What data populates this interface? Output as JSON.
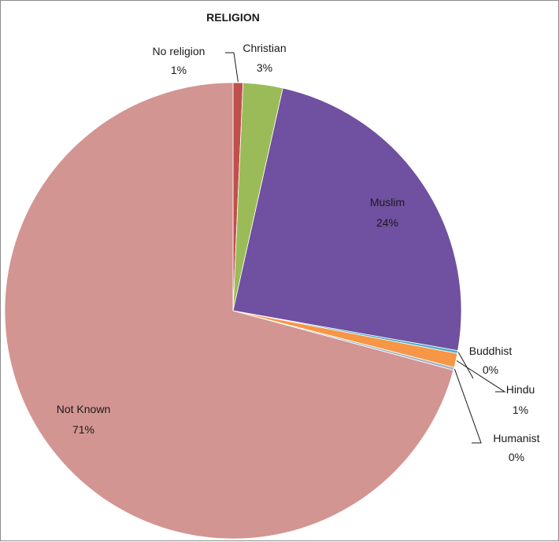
{
  "chart_data": {
    "type": "pie",
    "title": "RELIGION",
    "slices": [
      {
        "label": "No religion",
        "pct_label": "1%",
        "value": 0.7,
        "color": "#c0504d"
      },
      {
        "label": "Christian",
        "pct_label": "3%",
        "value": 2.8,
        "color": "#9bbb59"
      },
      {
        "label": "Muslim",
        "pct_label": "24%",
        "value": 24.3,
        "color": "#7050a0"
      },
      {
        "label": "Buddhist",
        "pct_label": "0%",
        "value": 0.2,
        "color": "#4bacc6"
      },
      {
        "label": "Hindu",
        "pct_label": "1%",
        "value": 1.0,
        "color": "#f79646"
      },
      {
        "label": "Humanist",
        "pct_label": "0%",
        "value": 0.2,
        "color": "#a5b4c8"
      },
      {
        "label": "Not Known",
        "pct_label": "71%",
        "value": 70.8,
        "color": "#d39592"
      }
    ],
    "start_angle_deg": 0,
    "direction": "clockwise",
    "legend": "none",
    "data_labels": "category name and percentage"
  }
}
